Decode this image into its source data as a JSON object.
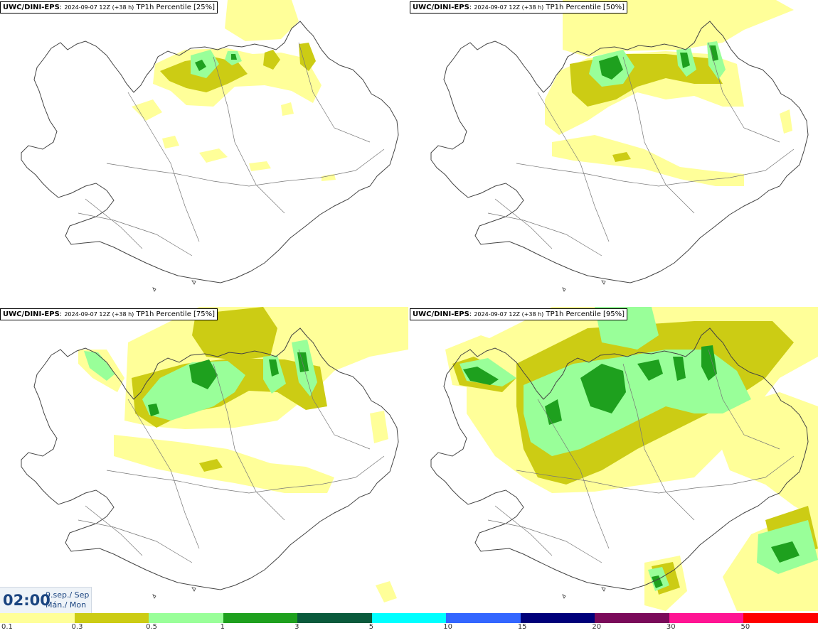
{
  "panels": [
    {
      "model": "UWC/DINI-EPS",
      "run": "2024-09-07 12Z (+38 h)",
      "field": "TP1h Percentile [25%]"
    },
    {
      "model": "UWC/DINI-EPS",
      "run": "2024-09-07 12Z (+38 h)",
      "field": "TP1h Percentile [50%]"
    },
    {
      "model": "UWC/DINI-EPS",
      "run": "2024-09-07 12Z (+38 h)",
      "field": "TP1h Percentile [75%]"
    },
    {
      "model": "UWC/DINI-EPS",
      "run": "2024-09-07 12Z (+38 h)",
      "field": "TP1h Percentile [95%]"
    }
  ],
  "valid_time": {
    "time": "02:00",
    "date_line": "9.sep./ Sep",
    "day_line": "Mán./ Mon"
  },
  "legend": {
    "colors": [
      "#ffff99",
      "#cccc14",
      "#99ff99",
      "#1ea01e",
      "#0a5a3c",
      "#00ffff",
      "#3366ff",
      "#00007a",
      "#7a0a5a",
      "#ff1493",
      "#ff0000"
    ],
    "ticks": [
      "0.1",
      "0.3",
      "0.5",
      "1",
      "3",
      "5",
      "10",
      "15",
      "20",
      "30",
      "50"
    ]
  }
}
